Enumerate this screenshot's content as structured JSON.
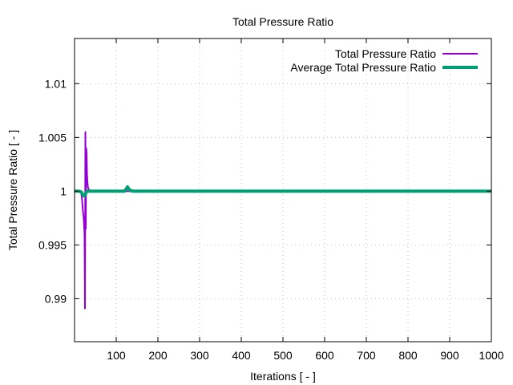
{
  "chart_data": {
    "type": "line",
    "title": "Total Pressure Ratio",
    "xlabel": "Iterations [ - ]",
    "ylabel": "Total Pressure Ratio [ - ]",
    "xlim": [
      0,
      1000
    ],
    "ylim": [
      0.986,
      1.0142
    ],
    "xticks": [
      100,
      200,
      300,
      400,
      500,
      600,
      700,
      800,
      900,
      1000
    ],
    "xtick_labels": [
      "100",
      "200",
      "300",
      "400",
      "500",
      "600",
      "700",
      "800",
      "900",
      "1000"
    ],
    "yticks": [
      0.99,
      0.995,
      1,
      1.005,
      1.01
    ],
    "ytick_labels": [
      "0.99",
      "0.995",
      "1",
      "1.005",
      "1.01"
    ],
    "grid": true,
    "legend_position": "top-right",
    "series": [
      {
        "name": "Total Pressure Ratio",
        "color": "#9400d3",
        "x": [
          0,
          10,
          16,
          18,
          20,
          22,
          24,
          25,
          26,
          27,
          28,
          29,
          30,
          31,
          32,
          33,
          34,
          36,
          38,
          40,
          50,
          100,
          200,
          400,
          600,
          800,
          1000
        ],
        "y": [
          1.0,
          1.0,
          0.9999,
          0.9992,
          0.9982,
          0.9975,
          0.996,
          0.9891,
          1.0055,
          0.9965,
          1.004,
          1.0035,
          1.0015,
          1.0008,
          1.0004,
          1.0003,
          1.0001,
          1.0001,
          1.0,
          1.0,
          1.0,
          1.0,
          1.0,
          1.0,
          1.0,
          1.0,
          1.0
        ]
      },
      {
        "name": "Average Total Pressure Ratio",
        "color": "#009e73",
        "x": [
          0,
          10,
          15,
          18,
          21,
          24,
          26,
          28,
          30,
          35,
          40,
          120,
          124,
          127,
          130,
          135,
          140,
          200,
          400,
          600,
          800,
          1000
        ],
        "y": [
          1.0,
          1.0,
          0.99995,
          0.9998,
          0.9996,
          0.99955,
          0.9997,
          0.9999,
          1.0,
          1.0,
          1.0,
          1.0,
          1.0002,
          1.0004,
          1.0002,
          1.00005,
          1.0,
          1.0,
          1.0,
          1.0,
          1.0,
          1.0
        ]
      }
    ]
  }
}
